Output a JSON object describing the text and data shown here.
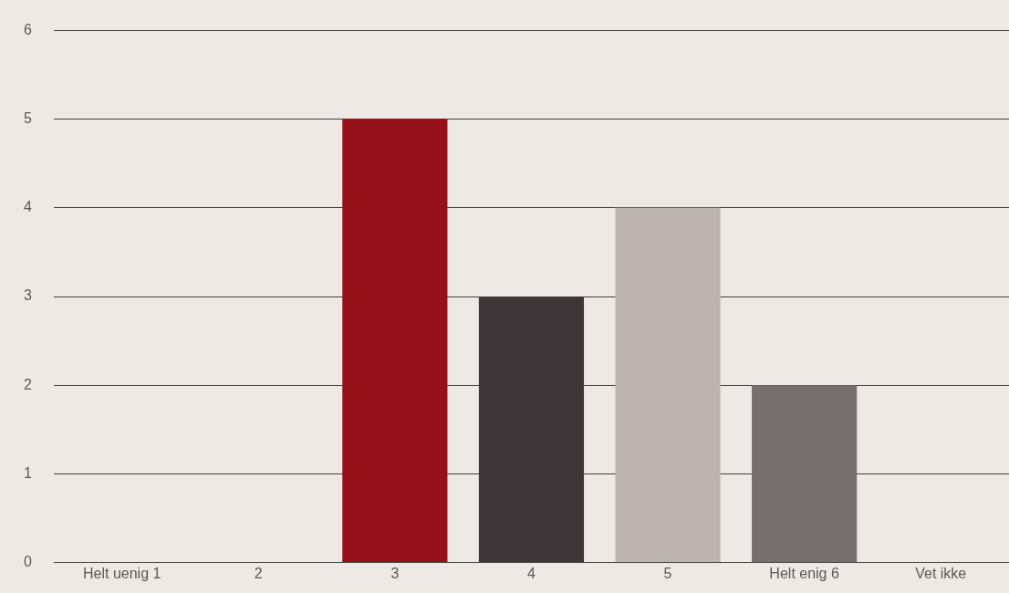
{
  "chart_data": {
    "type": "bar",
    "categories": [
      "Helt uenig 1",
      "2",
      "3",
      "4",
      "5",
      "Helt enig 6",
      "Vet ikke"
    ],
    "values": [
      0,
      0,
      5,
      3,
      4,
      2,
      0
    ],
    "colors": [
      "#961019",
      "#3e3538",
      "#961019",
      "#3e3538",
      "#bfb5b0",
      "#776e70",
      "#961019"
    ],
    "ylim": [
      0,
      6
    ],
    "yticks": [
      0,
      1,
      2,
      3,
      4,
      5,
      6
    ],
    "grid": "y",
    "legend": false
  }
}
